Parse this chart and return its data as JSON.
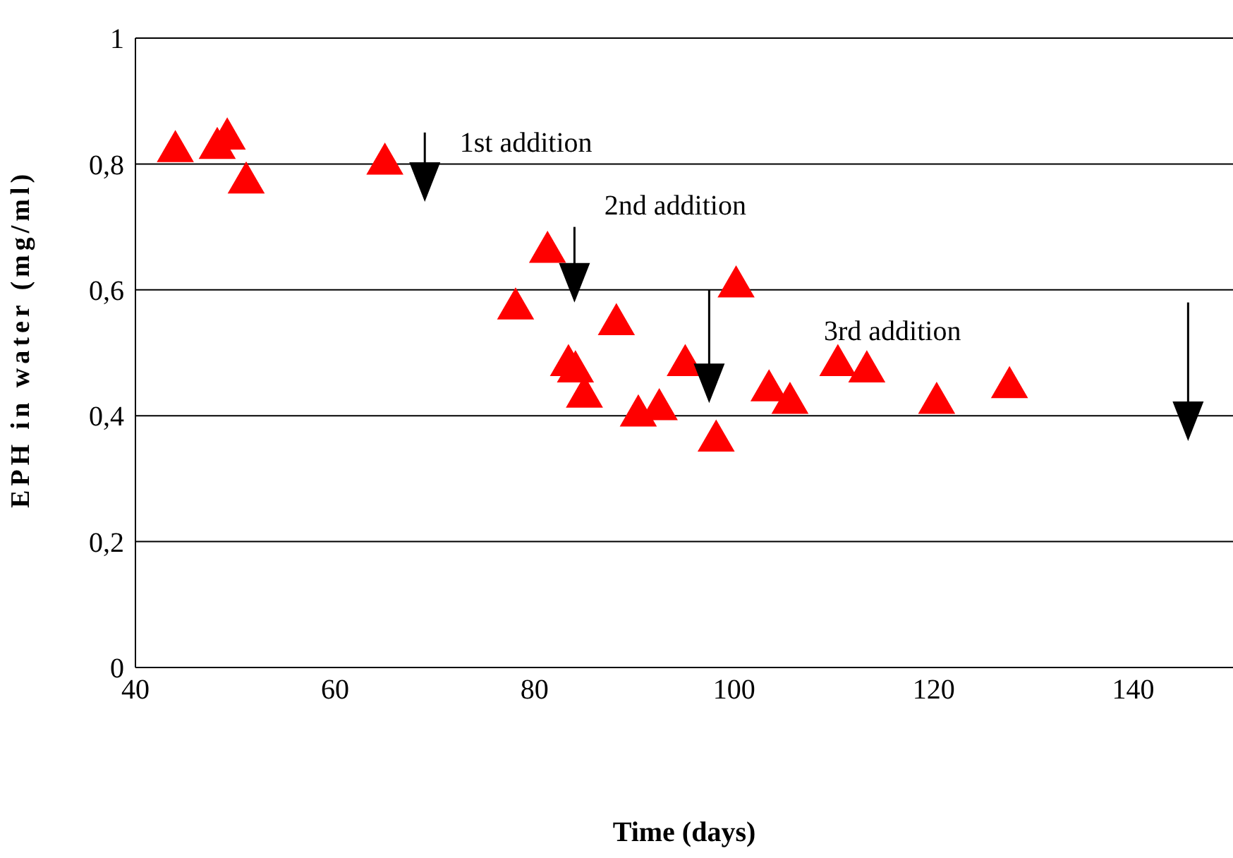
{
  "chart_data": {
    "type": "scatter",
    "xlabel": "Time (days)",
    "ylabel": "EPH in water (mg/ml)",
    "x": [
      44,
      48.2,
      49.2,
      51.1,
      65,
      78.1,
      81.3,
      83.4,
      84.1,
      85,
      88.2,
      90.4,
      92.5,
      95.1,
      98.2,
      100.2,
      103.5,
      105.6,
      110.4,
      113.3,
      120.3,
      127.6
    ],
    "series": [
      {
        "color": "#ff0000",
        "values": [
          0.82,
          0.825,
          0.84,
          0.77,
          0.8,
          0.57,
          0.66,
          0.48,
          0.47,
          0.43,
          0.545,
          0.4,
          0.41,
          0.48,
          0.36,
          0.605,
          0.44,
          0.42,
          0.48,
          0.47,
          0.42,
          0.445
        ]
      }
    ],
    "marker": "triangle",
    "xlim": [
      40,
      150
    ],
    "xticks": [
      40,
      60,
      80,
      100,
      120,
      140
    ],
    "ylim": [
      0,
      1
    ],
    "yticks": [
      0,
      {
        "value": 0.2,
        "label": "0,2"
      },
      {
        "value": 0.4,
        "label": "0,4"
      },
      {
        "value": 0.6,
        "label": "0,6"
      },
      {
        "value": 0.8,
        "label": "0,8"
      },
      1
    ],
    "grid": "y",
    "annotations": [
      "1st addition",
      "2nd addition",
      "3rd addition"
    ]
  }
}
